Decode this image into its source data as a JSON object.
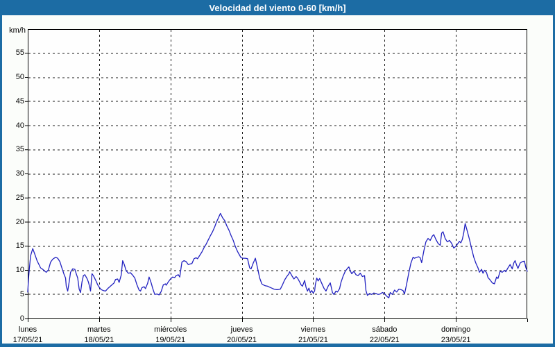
{
  "window": {
    "title": "Velocidad del viento 0-60 [km/h]"
  },
  "colors": {
    "titlebar_bg": "#1c6ca4",
    "frame_border": "#1c6ca4",
    "title_text": "#ffffff",
    "content_bg": "#fbfdfa",
    "plot_bg": "#fefefe",
    "grid": "#1a1a1a",
    "axis": "#000000",
    "line": "#2121c0",
    "label_text": "#000000"
  },
  "chart_data": {
    "type": "line",
    "title": "Velocidad del viento 0-60 [km/h]",
    "y_unit_label": "km/h",
    "ylim": [
      0,
      60
    ],
    "y_tick_step": 5,
    "y_ticks": [
      0,
      5,
      10,
      15,
      20,
      25,
      30,
      35,
      40,
      45,
      50,
      55
    ],
    "xlim_days": [
      0,
      7
    ],
    "grid": "dashed",
    "legend": "none",
    "x_ticks": [
      {
        "day": 0,
        "label": "lunes",
        "date": "17/05/21"
      },
      {
        "day": 1,
        "label": "martes",
        "date": "18/05/21"
      },
      {
        "day": 2,
        "label": "miércoles",
        "date": "19/05/21"
      },
      {
        "day": 3,
        "label": "jueves",
        "date": "20/05/21"
      },
      {
        "day": 4,
        "label": "viernes",
        "date": "21/05/21"
      },
      {
        "day": 5,
        "label": "sábado",
        "date": "22/05/21"
      },
      {
        "day": 6,
        "label": "domingo",
        "date": "23/05/21"
      }
    ],
    "series": [
      {
        "name": "velocidad del viento",
        "units": "km/h",
        "points": [
          [
            0.0,
            5.5
          ],
          [
            0.01,
            8.0
          ],
          [
            0.02,
            10.0
          ],
          [
            0.04,
            13.0
          ],
          [
            0.07,
            14.5
          ],
          [
            0.1,
            13.3
          ],
          [
            0.13,
            12.0
          ],
          [
            0.16,
            11.1
          ],
          [
            0.18,
            10.5
          ],
          [
            0.21,
            10.2
          ],
          [
            0.24,
            9.8
          ],
          [
            0.26,
            9.6
          ],
          [
            0.29,
            10.1
          ],
          [
            0.32,
            11.7
          ],
          [
            0.35,
            12.3
          ],
          [
            0.39,
            12.7
          ],
          [
            0.42,
            12.5
          ],
          [
            0.45,
            11.8
          ],
          [
            0.48,
            10.4
          ],
          [
            0.51,
            9.1
          ],
          [
            0.53,
            8.4
          ],
          [
            0.54,
            6.7
          ],
          [
            0.56,
            5.7
          ],
          [
            0.58,
            7.6
          ],
          [
            0.6,
            9.6
          ],
          [
            0.63,
            10.3
          ],
          [
            0.66,
            10.2
          ],
          [
            0.68,
            9.3
          ],
          [
            0.7,
            8.4
          ],
          [
            0.72,
            6.1
          ],
          [
            0.74,
            5.4
          ],
          [
            0.76,
            7.6
          ],
          [
            0.78,
            8.9
          ],
          [
            0.8,
            9.1
          ],
          [
            0.83,
            8.3
          ],
          [
            0.85,
            7.6
          ],
          [
            0.87,
            6.4
          ],
          [
            0.88,
            5.7
          ],
          [
            0.9,
            9.3
          ],
          [
            0.92,
            8.9
          ],
          [
            0.94,
            8.3
          ],
          [
            0.96,
            7.7
          ],
          [
            0.98,
            7.0
          ],
          [
            1.0,
            6.5
          ],
          [
            1.03,
            6.0
          ],
          [
            1.06,
            5.8
          ],
          [
            1.09,
            5.7
          ],
          [
            1.12,
            6.2
          ],
          [
            1.15,
            6.6
          ],
          [
            1.18,
            7.0
          ],
          [
            1.21,
            7.4
          ],
          [
            1.23,
            8.1
          ],
          [
            1.26,
            8.2
          ],
          [
            1.28,
            7.5
          ],
          [
            1.31,
            9.0
          ],
          [
            1.33,
            12.0
          ],
          [
            1.35,
            11.3
          ],
          [
            1.38,
            9.9
          ],
          [
            1.41,
            9.4
          ],
          [
            1.44,
            9.5
          ],
          [
            1.47,
            9.0
          ],
          [
            1.5,
            8.4
          ],
          [
            1.53,
            7.0
          ],
          [
            1.56,
            5.9
          ],
          [
            1.58,
            5.7
          ],
          [
            1.6,
            6.4
          ],
          [
            1.63,
            6.6
          ],
          [
            1.65,
            6.2
          ],
          [
            1.68,
            7.3
          ],
          [
            1.7,
            8.6
          ],
          [
            1.73,
            7.4
          ],
          [
            1.75,
            6.3
          ],
          [
            1.78,
            5.0
          ],
          [
            1.81,
            5.1
          ],
          [
            1.84,
            4.9
          ],
          [
            1.87,
            5.6
          ],
          [
            1.9,
            7.0
          ],
          [
            1.93,
            7.2
          ],
          [
            1.94,
            6.9
          ],
          [
            1.97,
            7.6
          ],
          [
            2.0,
            8.2
          ],
          [
            2.03,
            8.6
          ],
          [
            2.06,
            8.5
          ],
          [
            2.08,
            8.9
          ],
          [
            2.11,
            9.1
          ],
          [
            2.13,
            8.6
          ],
          [
            2.16,
            11.7
          ],
          [
            2.19,
            12.0
          ],
          [
            2.22,
            11.8
          ],
          [
            2.25,
            11.2
          ],
          [
            2.27,
            11.3
          ],
          [
            2.3,
            11.4
          ],
          [
            2.33,
            12.4
          ],
          [
            2.36,
            12.6
          ],
          [
            2.38,
            12.4
          ],
          [
            2.41,
            13.1
          ],
          [
            2.44,
            13.8
          ],
          [
            2.47,
            14.7
          ],
          [
            2.5,
            15.4
          ],
          [
            2.53,
            16.3
          ],
          [
            2.56,
            17.2
          ],
          [
            2.59,
            18.0
          ],
          [
            2.62,
            19.0
          ],
          [
            2.64,
            19.8
          ],
          [
            2.67,
            20.8
          ],
          [
            2.7,
            21.8
          ],
          [
            2.73,
            20.9
          ],
          [
            2.76,
            20.3
          ],
          [
            2.79,
            19.2
          ],
          [
            2.82,
            18.3
          ],
          [
            2.85,
            17.2
          ],
          [
            2.88,
            16.2
          ],
          [
            2.91,
            14.9
          ],
          [
            2.94,
            13.9
          ],
          [
            2.97,
            13.1
          ],
          [
            2.99,
            12.6
          ],
          [
            3.02,
            12.5
          ],
          [
            3.05,
            12.5
          ],
          [
            3.08,
            12.4
          ],
          [
            3.11,
            10.5
          ],
          [
            3.13,
            10.3
          ],
          [
            3.16,
            11.5
          ],
          [
            3.19,
            12.5
          ],
          [
            3.22,
            10.5
          ],
          [
            3.25,
            8.4
          ],
          [
            3.28,
            7.2
          ],
          [
            3.31,
            6.9
          ],
          [
            3.33,
            6.8
          ],
          [
            3.36,
            6.7
          ],
          [
            3.39,
            6.5
          ],
          [
            3.42,
            6.3
          ],
          [
            3.45,
            6.1
          ],
          [
            3.48,
            6.0
          ],
          [
            3.51,
            6.0
          ],
          [
            3.54,
            6.1
          ],
          [
            3.57,
            7.0
          ],
          [
            3.6,
            8.0
          ],
          [
            3.63,
            8.7
          ],
          [
            3.66,
            9.3
          ],
          [
            3.67,
            9.7
          ],
          [
            3.7,
            8.9
          ],
          [
            3.73,
            8.2
          ],
          [
            3.76,
            8.7
          ],
          [
            3.78,
            8.4
          ],
          [
            3.81,
            7.6
          ],
          [
            3.83,
            7.0
          ],
          [
            3.85,
            6.7
          ],
          [
            3.88,
            7.9
          ],
          [
            3.9,
            6.5
          ],
          [
            3.92,
            5.7
          ],
          [
            3.94,
            6.3
          ],
          [
            3.96,
            5.4
          ],
          [
            3.98,
            5.8
          ],
          [
            4.0,
            5.3
          ],
          [
            4.02,
            5.7
          ],
          [
            4.03,
            7.0
          ],
          [
            4.05,
            8.4
          ],
          [
            4.07,
            7.8
          ],
          [
            4.09,
            8.3
          ],
          [
            4.12,
            7.3
          ],
          [
            4.15,
            6.3
          ],
          [
            4.18,
            5.7
          ],
          [
            4.21,
            6.7
          ],
          [
            4.24,
            7.4
          ],
          [
            4.27,
            5.4
          ],
          [
            4.29,
            5.0
          ],
          [
            4.32,
            5.7
          ],
          [
            4.34,
            5.5
          ],
          [
            4.37,
            6.2
          ],
          [
            4.39,
            7.5
          ],
          [
            4.42,
            8.8
          ],
          [
            4.45,
            9.8
          ],
          [
            4.48,
            10.4
          ],
          [
            4.5,
            10.7
          ],
          [
            4.52,
            9.9
          ],
          [
            4.54,
            9.3
          ],
          [
            4.57,
            9.8
          ],
          [
            4.6,
            9.1
          ],
          [
            4.63,
            8.9
          ],
          [
            4.66,
            9.4
          ],
          [
            4.69,
            8.7
          ],
          [
            4.72,
            8.9
          ],
          [
            4.74,
            5.8
          ],
          [
            4.76,
            4.8
          ],
          [
            4.79,
            5.2
          ],
          [
            4.82,
            5.0
          ],
          [
            4.85,
            5.3
          ],
          [
            4.88,
            5.2
          ],
          [
            4.91,
            5.0
          ],
          [
            4.94,
            5.1
          ],
          [
            4.97,
            5.4
          ],
          [
            5.0,
            5.2
          ],
          [
            5.02,
            4.8
          ],
          [
            5.04,
            4.5
          ],
          [
            5.06,
            4.3
          ],
          [
            5.08,
            5.4
          ],
          [
            5.11,
            5.0
          ],
          [
            5.14,
            5.9
          ],
          [
            5.17,
            5.5
          ],
          [
            5.2,
            6.1
          ],
          [
            5.23,
            6.0
          ],
          [
            5.26,
            5.8
          ],
          [
            5.28,
            5.1
          ],
          [
            5.31,
            7.2
          ],
          [
            5.34,
            9.5
          ],
          [
            5.37,
            11.5
          ],
          [
            5.4,
            12.7
          ],
          [
            5.42,
            12.5
          ],
          [
            5.45,
            12.7
          ],
          [
            5.48,
            12.8
          ],
          [
            5.5,
            12.6
          ],
          [
            5.52,
            11.6
          ],
          [
            5.55,
            14.0
          ],
          [
            5.58,
            15.9
          ],
          [
            5.61,
            16.6
          ],
          [
            5.64,
            16.2
          ],
          [
            5.67,
            17.1
          ],
          [
            5.69,
            17.4
          ],
          [
            5.72,
            16.4
          ],
          [
            5.75,
            15.6
          ],
          [
            5.78,
            15.2
          ],
          [
            5.8,
            17.7
          ],
          [
            5.82,
            18.0
          ],
          [
            5.85,
            16.6
          ],
          [
            5.88,
            15.9
          ],
          [
            5.91,
            16.2
          ],
          [
            5.94,
            15.6
          ],
          [
            5.97,
            14.6
          ],
          [
            6.0,
            15.0
          ],
          [
            6.03,
            15.6
          ],
          [
            6.05,
            16.0
          ],
          [
            6.07,
            15.7
          ],
          [
            6.09,
            16.4
          ],
          [
            6.11,
            17.8
          ],
          [
            6.13,
            19.7
          ],
          [
            6.16,
            18.1
          ],
          [
            6.19,
            16.4
          ],
          [
            6.22,
            14.5
          ],
          [
            6.25,
            12.7
          ],
          [
            6.28,
            11.5
          ],
          [
            6.31,
            10.5
          ],
          [
            6.33,
            9.6
          ],
          [
            6.36,
            10.2
          ],
          [
            6.38,
            9.4
          ],
          [
            6.4,
            10.0
          ],
          [
            6.43,
            9.5
          ],
          [
            6.45,
            8.5
          ],
          [
            6.48,
            8.0
          ],
          [
            6.51,
            7.4
          ],
          [
            6.54,
            7.2
          ],
          [
            6.57,
            8.6
          ],
          [
            6.59,
            8.3
          ],
          [
            6.62,
            9.8
          ],
          [
            6.65,
            9.6
          ],
          [
            6.68,
            10.0
          ],
          [
            6.7,
            9.7
          ],
          [
            6.73,
            10.5
          ],
          [
            6.76,
            11.2
          ],
          [
            6.79,
            10.3
          ],
          [
            6.81,
            11.5
          ],
          [
            6.83,
            12.0
          ],
          [
            6.85,
            11.1
          ],
          [
            6.87,
            10.4
          ],
          [
            6.9,
            11.5
          ],
          [
            6.93,
            11.8
          ],
          [
            6.96,
            11.9
          ],
          [
            6.98,
            10.6
          ],
          [
            7.0,
            9.8
          ]
        ]
      }
    ]
  }
}
